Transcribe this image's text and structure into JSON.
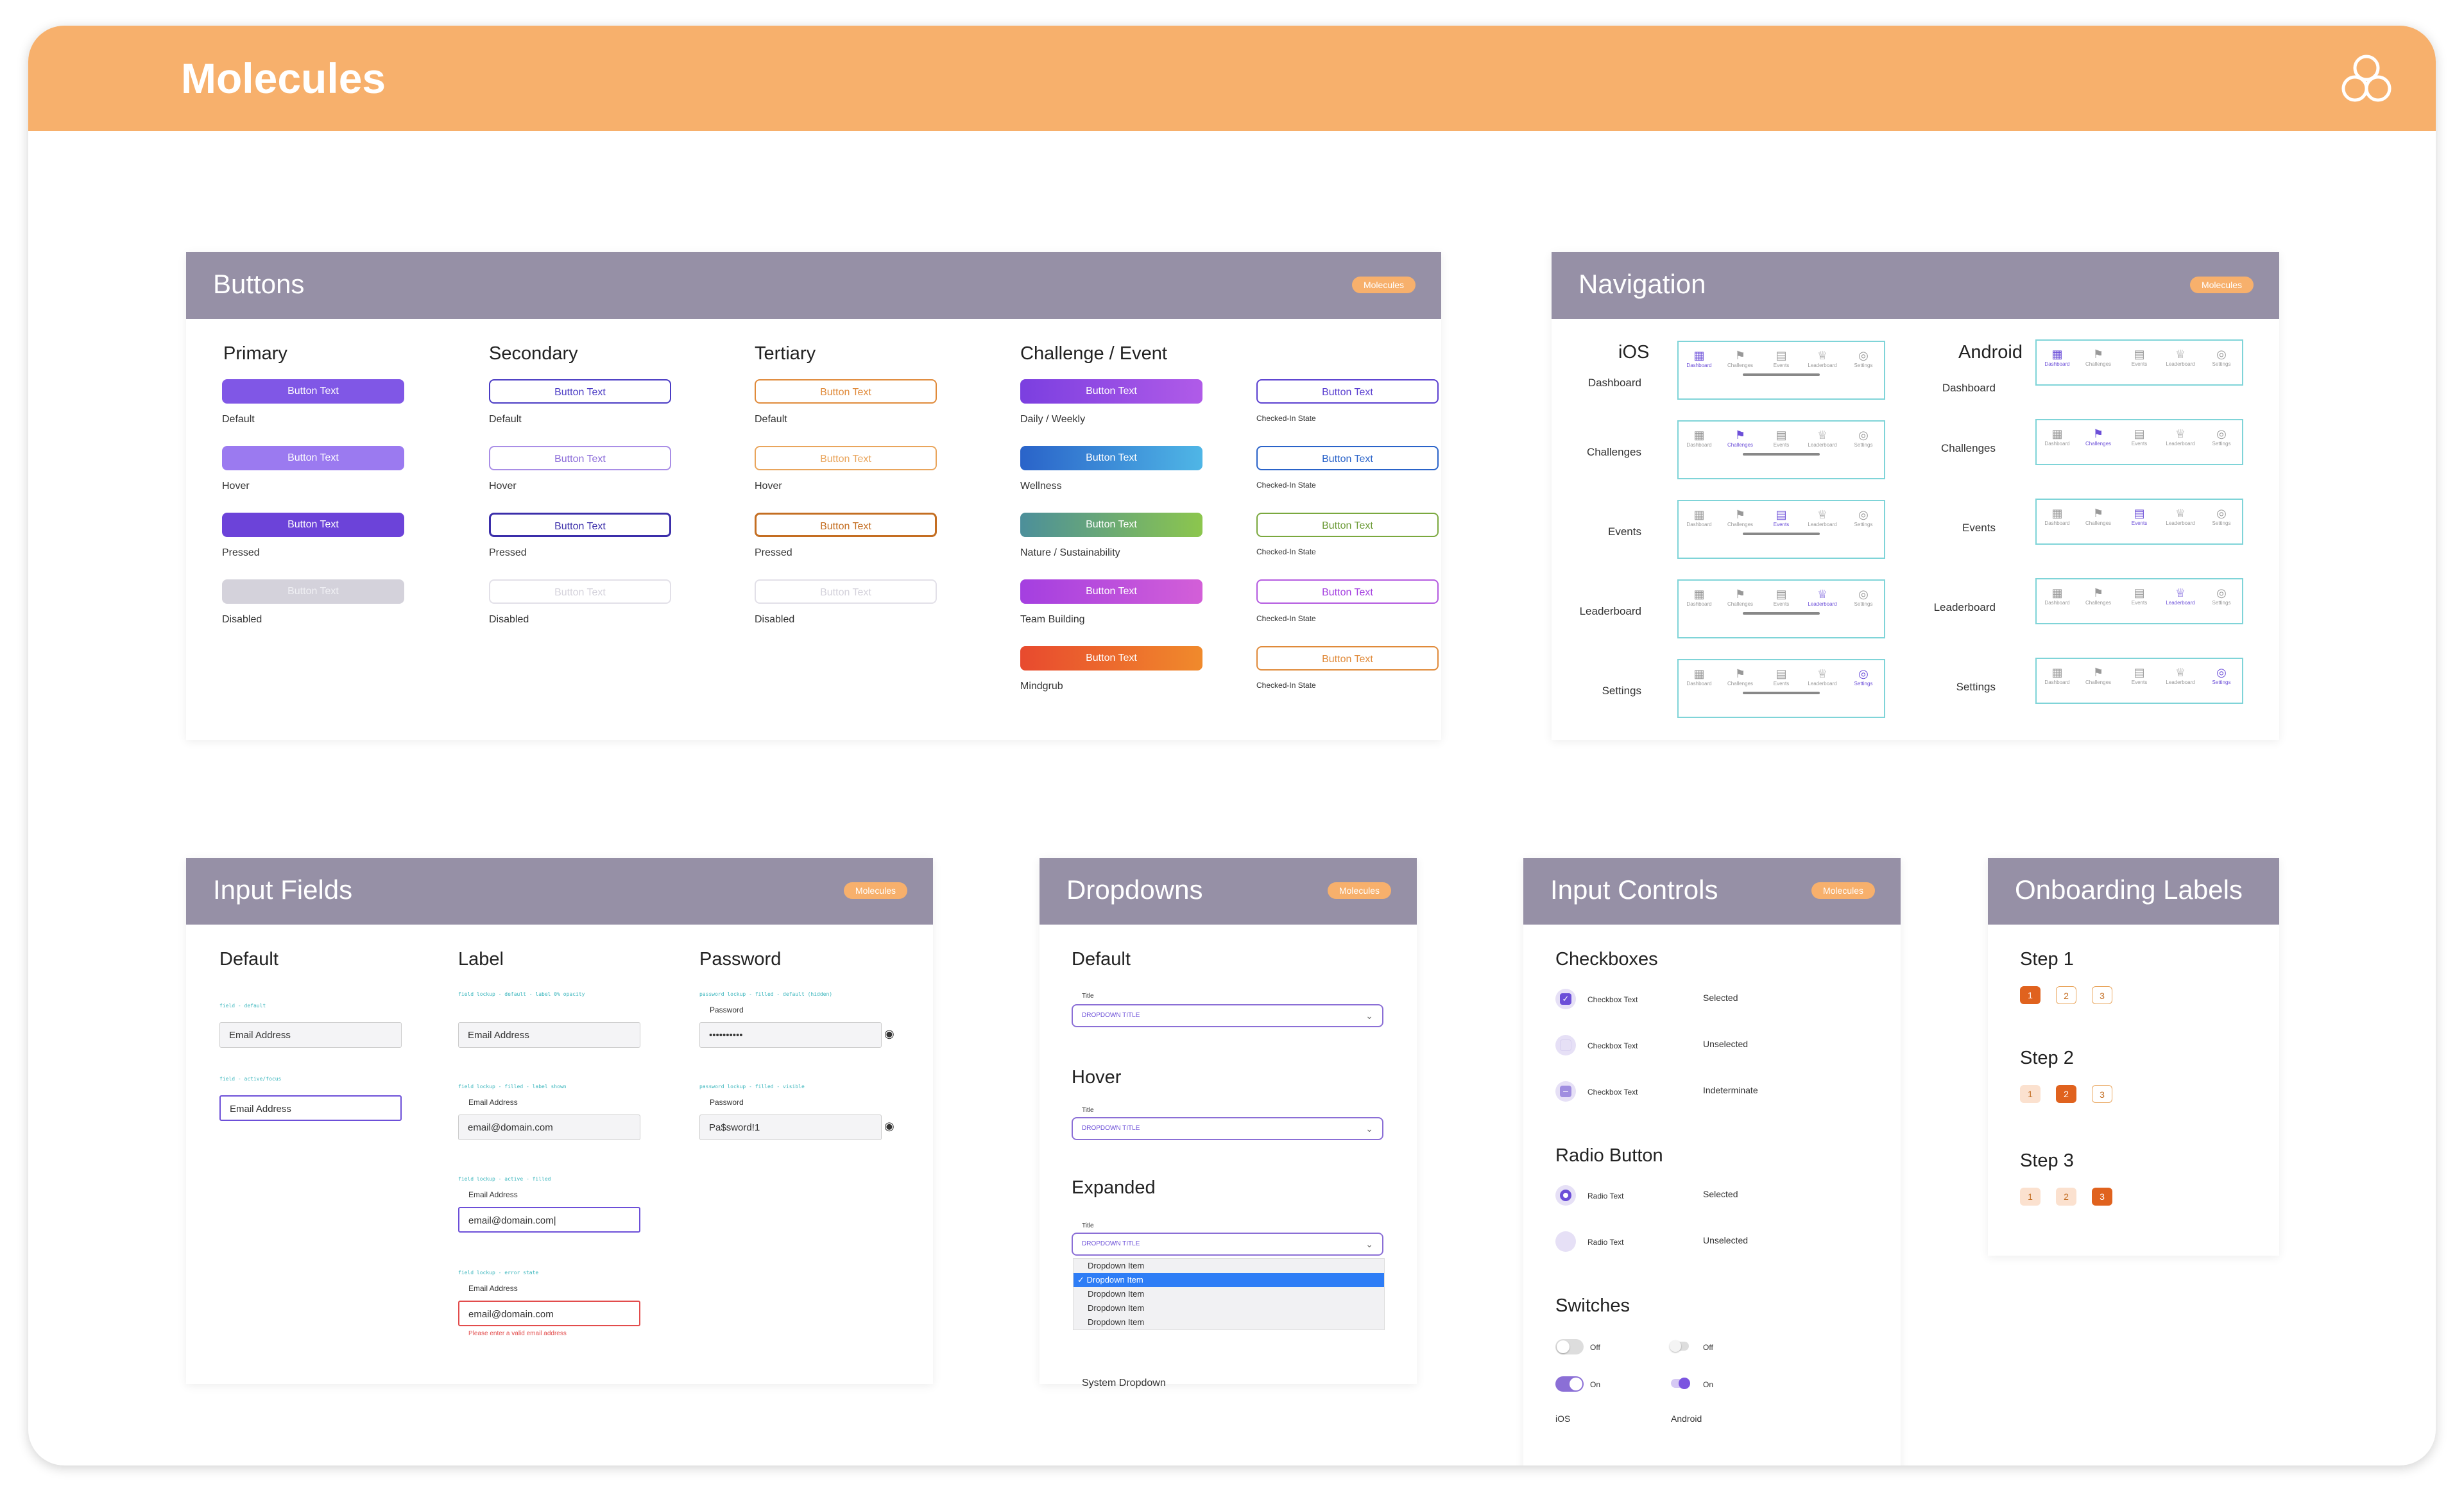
{
  "page": {
    "title": "Molecules"
  },
  "badge": "Molecules",
  "buttons": {
    "title": "Buttons",
    "btn_text": "Button Text",
    "columns": {
      "primary": "Primary",
      "secondary": "Secondary",
      "tertiary": "Tertiary",
      "challenge": "Challenge / Event"
    },
    "states": [
      "Default",
      "Hover",
      "Pressed",
      "Disabled"
    ],
    "challenge_labels": [
      "Daily / Weekly",
      "Wellness",
      "Nature / Sustainability",
      "Team Building",
      "Mindgrub"
    ],
    "checked_state": "Checked-In State",
    "colors": {
      "primary": "#8057e6",
      "secondary": "#4a3bc4",
      "tertiary": "#e08a3a",
      "disabled": "#d4d2db"
    }
  },
  "navigation": {
    "title": "Navigation",
    "ios": "iOS",
    "android": "Android",
    "rows": [
      "Dashboard",
      "Challenges",
      "Events",
      "Leaderboard",
      "Settings"
    ],
    "tabs": [
      "Dashboard",
      "Challenges",
      "Events",
      "Leaderboard",
      "Settings"
    ]
  },
  "inputs": {
    "title": "Input Fields",
    "columns": {
      "default": "Default",
      "label": "Label",
      "password": "Password"
    },
    "default_ann1": "field - default",
    "default_ann2": "field - active/focus",
    "placeholder": "Email Address",
    "label_ann": [
      "field lockup - default - label 0% opacity",
      "field lockup - filled - label shown",
      "field lockup - active - filled",
      "field lockup - error state"
    ],
    "label_text": "Email Address",
    "email_value": "email@domain.com",
    "email_active": "email@domain.com|",
    "error_text": "Please enter a valid email address",
    "pw_ann": [
      "password lockup - filled - default (hidden)",
      "password lockup - filled - visible"
    ],
    "pw_label": "Password",
    "pw_hidden": "••••••••••",
    "pw_visible": "Pa$sword!1"
  },
  "dropdowns": {
    "title": "Dropdowns",
    "default": "Default",
    "hover": "Hover",
    "expanded": "Expanded",
    "field_label": "Title",
    "dd_title": "DROPDOWN TITLE",
    "items": [
      "Dropdown Item",
      "Dropdown Item",
      "Dropdown Item",
      "Dropdown Item",
      "Dropdown Item"
    ],
    "system": "System Dropdown"
  },
  "controls": {
    "title": "Input Controls",
    "checkboxes": "Checkboxes",
    "cb_text": "Checkbox Text",
    "cb_states": [
      "Selected",
      "Unselected",
      "Indeterminate"
    ],
    "radio": "Radio Button",
    "radio_text": "Radio Text",
    "radio_states": [
      "Selected",
      "Unselected"
    ],
    "switches": "Switches",
    "off": "Off",
    "on": "On",
    "ios": "iOS",
    "android": "Android"
  },
  "onboarding": {
    "title": "Onboarding Labels",
    "steps": [
      "Step 1",
      "Step 2",
      "Step 3"
    ],
    "nums": [
      "1",
      "2",
      "3"
    ]
  }
}
